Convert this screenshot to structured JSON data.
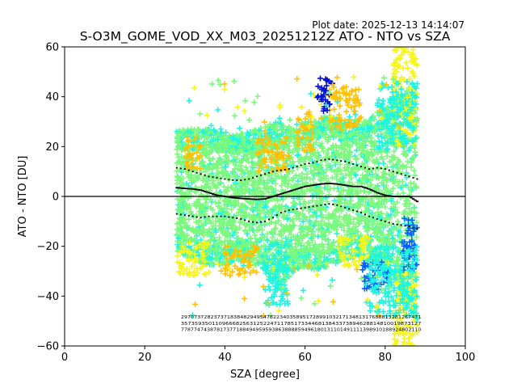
{
  "chart_data": {
    "type": "scatter",
    "plot_date": "Plot date: 2025-12-13 14:14:07",
    "title": "S-O3M_GOME_VOD_XX_M03_20251212Z ATO - NTO vs SZA",
    "xlabel": "SZA [degree]",
    "ylabel": "ATO - NTO [DU]",
    "xlim": [
      0,
      100
    ],
    "ylim": [
      -60,
      60
    ],
    "xticks": [
      0,
      20,
      40,
      60,
      80,
      100
    ],
    "yticks": [
      -60,
      -40,
      -20,
      0,
      20,
      40,
      60
    ],
    "zero_line": 0,
    "marker": "+",
    "grid": false,
    "colors": {
      "cloud_main": "#7cf97c",
      "cloud_cyan": "#1ef5e0",
      "yellow": "#f5f51a",
      "orange": "#ffc000",
      "blue": "#0060ff",
      "darkblue": "#0010d0",
      "black": "#000000"
    },
    "envelope": {
      "x": [
        28,
        30,
        33,
        36,
        40,
        43,
        46,
        50,
        53,
        56,
        60,
        63,
        66,
        69,
        72,
        75,
        78,
        81,
        84,
        86,
        87,
        88
      ],
      "upper": [
        27,
        27,
        27,
        27,
        26,
        25,
        26,
        28,
        30,
        28,
        30,
        31,
        33,
        30,
        32,
        30,
        34,
        36,
        40,
        44,
        36,
        30
      ],
      "lower": [
        -22,
        -24,
        -26,
        -28,
        -27,
        -26,
        -26,
        -30,
        -38,
        -32,
        -28,
        -30,
        -28,
        -26,
        -25,
        -26,
        -28,
        -32,
        -38,
        -44,
        -50,
        -56
      ]
    },
    "series": [
      {
        "name": "mean",
        "x": [
          28,
          30,
          32,
          34,
          36,
          38,
          40,
          42,
          44,
          46,
          48,
          50,
          52,
          54,
          56,
          58,
          60,
          62,
          64,
          66,
          68,
          70,
          72,
          74,
          76,
          78,
          80,
          82,
          84,
          86,
          88
        ],
        "y": [
          3.5,
          3.2,
          3,
          2.5,
          1.5,
          0.5,
          0,
          -0.5,
          -0.8,
          -1,
          -1.2,
          -1,
          0,
          1,
          2,
          3,
          4,
          4.5,
          5,
          5.2,
          5,
          4.5,
          4,
          4,
          3,
          1.5,
          0.5,
          0,
          0,
          0,
          -2
        ]
      },
      {
        "name": "upper",
        "x": [
          28,
          30,
          32,
          34,
          36,
          38,
          40,
          42,
          44,
          46,
          48,
          50,
          52,
          54,
          56,
          58,
          60,
          62,
          64,
          66,
          68,
          70,
          72,
          74,
          76,
          78,
          80,
          82,
          84,
          86,
          88
        ],
        "y": [
          11.5,
          11,
          10,
          9,
          8,
          7.5,
          7,
          6.5,
          6.5,
          7,
          8,
          9,
          10,
          10.5,
          11,
          12,
          13,
          13.5,
          14.5,
          15,
          14.5,
          14,
          13,
          12,
          11,
          11.5,
          11,
          10,
          9,
          8,
          7
        ]
      },
      {
        "name": "lower",
        "x": [
          28,
          30,
          32,
          34,
          36,
          38,
          40,
          42,
          44,
          46,
          48,
          50,
          52,
          54,
          56,
          58,
          60,
          62,
          64,
          66,
          68,
          70,
          72,
          74,
          76,
          78,
          80,
          82,
          84,
          86,
          88
        ],
        "y": [
          -7,
          -7.5,
          -8,
          -8.5,
          -8,
          -8,
          -8,
          -8.5,
          -9,
          -10,
          -10.5,
          -10,
          -8.5,
          -6.5,
          -5.5,
          -5,
          -4.5,
          -4,
          -3.5,
          -3,
          -3.5,
          -4.5,
          -5.5,
          -6.5,
          -8,
          -9,
          -10,
          -11,
          -11.5,
          -12,
          -13
        ]
      }
    ],
    "clusters": [
      {
        "color": "orange",
        "x": [
          48,
          56
        ],
        "y": [
          10,
          24
        ]
      },
      {
        "color": "orange",
        "x": [
          58,
          62
        ],
        "y": [
          18,
          34
        ]
      },
      {
        "color": "orange",
        "x": [
          66,
          74
        ],
        "y": [
          26,
          44
        ]
      },
      {
        "color": "orange",
        "x": [
          30,
          34
        ],
        "y": [
          10,
          24
        ]
      },
      {
        "color": "orange",
        "x": [
          40,
          48
        ],
        "y": [
          -32,
          -20
        ]
      },
      {
        "color": "yellow",
        "x": [
          28,
          36
        ],
        "y": [
          -32,
          -18
        ]
      },
      {
        "color": "yellow",
        "x": [
          68,
          76
        ],
        "y": [
          -28,
          -16
        ]
      },
      {
        "color": "yellow",
        "x": [
          82,
          88
        ],
        "y": [
          20,
          60
        ]
      },
      {
        "color": "yellow",
        "x": [
          82,
          88
        ],
        "y": [
          -60,
          -30
        ]
      },
      {
        "color": "darkblue",
        "x": [
          63,
          67
        ],
        "y": [
          34,
          48
        ]
      },
      {
        "color": "blue",
        "x": [
          74,
          81
        ],
        "y": [
          -38,
          -26
        ]
      },
      {
        "color": "blue",
        "x": [
          84,
          88
        ],
        "y": [
          -30,
          -8
        ]
      },
      {
        "color": "cloud_cyan",
        "x": [
          50,
          56
        ],
        "y": [
          -44,
          -18
        ]
      },
      {
        "color": "cloud_cyan",
        "x": [
          76,
          88
        ],
        "y": [
          -48,
          -20
        ]
      },
      {
        "color": "cloud_cyan",
        "x": [
          78,
          88
        ],
        "y": [
          18,
          46
        ]
      }
    ],
    "count_labels": {
      "rows": [
        "2970737282373718384829495478223403589517289910321713481317688813281267471",
        "3573593501109666825631252247117851733446813843373894628814810019873127",
        "77877474387817377188494959593863888859496180131101491111398910188924802110"
      ],
      "x_start": 29,
      "x_end": 89,
      "y_values": [
        -49,
        -51.5,
        -54
      ]
    }
  }
}
